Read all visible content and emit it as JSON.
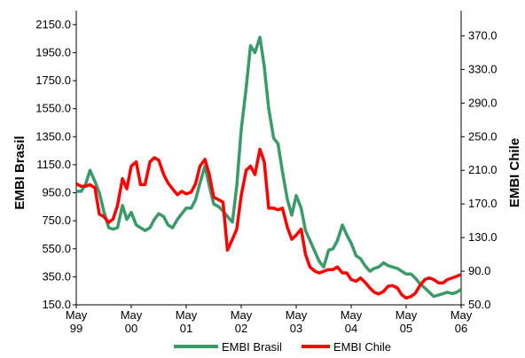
{
  "chart_data": {
    "type": "line",
    "title": "",
    "ylabel_left": "EMBI Brasil",
    "ylabel_right": "EMBI Chile",
    "ylim_left": [
      150,
      2250
    ],
    "ylim_right": [
      50,
      400
    ],
    "yticks_left": [
      "150.0",
      "350.0",
      "550.0",
      "750.0",
      "950.0",
      "1150.0",
      "1350.0",
      "1550.0",
      "1750.0",
      "1950.0",
      "2150.0"
    ],
    "yticks_right": [
      "50.0",
      "90.0",
      "130.0",
      "170.0",
      "210.0",
      "250.0",
      "290.0",
      "330.0",
      "370.0"
    ],
    "xticks": [
      {
        "line1": "May",
        "line2": "99"
      },
      {
        "line1": "May",
        "line2": "00"
      },
      {
        "line1": "May",
        "line2": "01"
      },
      {
        "line1": "May",
        "line2": "02"
      },
      {
        "line1": "May",
        "line2": "03"
      },
      {
        "line1": "May",
        "line2": "04"
      },
      {
        "line1": "May",
        "line2": "05"
      },
      {
        "line1": "May",
        "line2": "06"
      }
    ],
    "x_range": [
      1999.33,
      2006.33
    ],
    "grid": false,
    "legend_position": "bottom",
    "series": [
      {
        "name": "EMBI Brasil",
        "axis": "left",
        "color": "#3a9a6a",
        "points": [
          [
            1999.33,
            960
          ],
          [
            1999.42,
            960
          ],
          [
            1999.5,
            1010
          ],
          [
            1999.58,
            1110
          ],
          [
            1999.67,
            1030
          ],
          [
            1999.75,
            950
          ],
          [
            1999.83,
            820
          ],
          [
            1999.92,
            700
          ],
          [
            2000.0,
            690
          ],
          [
            2000.08,
            700
          ],
          [
            2000.17,
            860
          ],
          [
            2000.25,
            760
          ],
          [
            2000.33,
            810
          ],
          [
            2000.42,
            720
          ],
          [
            2000.5,
            700
          ],
          [
            2000.58,
            680
          ],
          [
            2000.67,
            700
          ],
          [
            2000.75,
            760
          ],
          [
            2000.83,
            800
          ],
          [
            2000.92,
            780
          ],
          [
            2001.0,
            720
          ],
          [
            2001.08,
            700
          ],
          [
            2001.17,
            760
          ],
          [
            2001.25,
            800
          ],
          [
            2001.33,
            840
          ],
          [
            2001.42,
            840
          ],
          [
            2001.5,
            900
          ],
          [
            2001.58,
            1020
          ],
          [
            2001.67,
            1140
          ],
          [
            2001.75,
            1000
          ],
          [
            2001.83,
            870
          ],
          [
            2001.92,
            850
          ],
          [
            2002.0,
            820
          ],
          [
            2002.08,
            780
          ],
          [
            2002.17,
            740
          ],
          [
            2002.25,
            1000
          ],
          [
            2002.33,
            1400
          ],
          [
            2002.42,
            1700
          ],
          [
            2002.5,
            2000
          ],
          [
            2002.58,
            1950
          ],
          [
            2002.67,
            2060
          ],
          [
            2002.75,
            1850
          ],
          [
            2002.83,
            1550
          ],
          [
            2002.92,
            1340
          ],
          [
            2003.0,
            1300
          ],
          [
            2003.08,
            1100
          ],
          [
            2003.17,
            900
          ],
          [
            2003.25,
            790
          ],
          [
            2003.33,
            930
          ],
          [
            2003.42,
            840
          ],
          [
            2003.5,
            680
          ],
          [
            2003.58,
            610
          ],
          [
            2003.67,
            530
          ],
          [
            2003.75,
            460
          ],
          [
            2003.83,
            420
          ],
          [
            2003.92,
            540
          ],
          [
            2004.0,
            550
          ],
          [
            2004.08,
            610
          ],
          [
            2004.17,
            720
          ],
          [
            2004.25,
            650
          ],
          [
            2004.33,
            590
          ],
          [
            2004.42,
            500
          ],
          [
            2004.5,
            480
          ],
          [
            2004.58,
            430
          ],
          [
            2004.67,
            390
          ],
          [
            2004.75,
            410
          ],
          [
            2004.83,
            420
          ],
          [
            2004.92,
            450
          ],
          [
            2005.0,
            430
          ],
          [
            2005.08,
            420
          ],
          [
            2005.17,
            410
          ],
          [
            2005.25,
            390
          ],
          [
            2005.33,
            370
          ],
          [
            2005.42,
            370
          ],
          [
            2005.5,
            340
          ],
          [
            2005.58,
            300
          ],
          [
            2005.67,
            270
          ],
          [
            2005.75,
            240
          ],
          [
            2005.83,
            210
          ],
          [
            2005.92,
            220
          ],
          [
            2006.0,
            230
          ],
          [
            2006.08,
            240
          ],
          [
            2006.17,
            230
          ],
          [
            2006.25,
            240
          ],
          [
            2006.33,
            260
          ]
        ]
      },
      {
        "name": "EMBI Chile",
        "axis": "right",
        "color": "#ff0000",
        "points": [
          [
            1999.33,
            194
          ],
          [
            1999.42,
            191
          ],
          [
            1999.5,
            191
          ],
          [
            1999.58,
            193
          ],
          [
            1999.67,
            189
          ],
          [
            1999.75,
            158
          ],
          [
            1999.83,
            155
          ],
          [
            1999.92,
            148
          ],
          [
            2000.0,
            152
          ],
          [
            2000.08,
            168
          ],
          [
            2000.17,
            200
          ],
          [
            2000.25,
            188
          ],
          [
            2000.33,
            215
          ],
          [
            2000.42,
            220
          ],
          [
            2000.5,
            193
          ],
          [
            2000.58,
            193
          ],
          [
            2000.67,
            220
          ],
          [
            2000.75,
            225
          ],
          [
            2000.83,
            222
          ],
          [
            2000.92,
            205
          ],
          [
            2001.0,
            195
          ],
          [
            2001.08,
            188
          ],
          [
            2001.17,
            181
          ],
          [
            2001.25,
            185
          ],
          [
            2001.33,
            182
          ],
          [
            2001.42,
            184
          ],
          [
            2001.5,
            194
          ],
          [
            2001.58,
            215
          ],
          [
            2001.67,
            223
          ],
          [
            2001.75,
            205
          ],
          [
            2001.83,
            178
          ],
          [
            2001.92,
            175
          ],
          [
            2002.0,
            172
          ],
          [
            2002.08,
            115
          ],
          [
            2002.17,
            128
          ],
          [
            2002.25,
            140
          ],
          [
            2002.33,
            180
          ],
          [
            2002.42,
            210
          ],
          [
            2002.5,
            215
          ],
          [
            2002.58,
            205
          ],
          [
            2002.67,
            235
          ],
          [
            2002.75,
            220
          ],
          [
            2002.83,
            165
          ],
          [
            2002.92,
            165
          ],
          [
            2003.0,
            163
          ],
          [
            2003.08,
            165
          ],
          [
            2003.17,
            142
          ],
          [
            2003.25,
            128
          ],
          [
            2003.33,
            133
          ],
          [
            2003.42,
            140
          ],
          [
            2003.5,
            110
          ],
          [
            2003.58,
            95
          ],
          [
            2003.67,
            90
          ],
          [
            2003.75,
            88
          ],
          [
            2003.83,
            90
          ],
          [
            2003.92,
            92
          ],
          [
            2004.0,
            92
          ],
          [
            2004.08,
            95
          ],
          [
            2004.17,
            88
          ],
          [
            2004.25,
            88
          ],
          [
            2004.33,
            80
          ],
          [
            2004.42,
            78
          ],
          [
            2004.5,
            82
          ],
          [
            2004.58,
            77
          ],
          [
            2004.67,
            70
          ],
          [
            2004.75,
            65
          ],
          [
            2004.83,
            63
          ],
          [
            2004.92,
            66
          ],
          [
            2005.0,
            72
          ],
          [
            2005.08,
            73
          ],
          [
            2005.17,
            70
          ],
          [
            2005.25,
            62
          ],
          [
            2005.33,
            58
          ],
          [
            2005.42,
            60
          ],
          [
            2005.5,
            64
          ],
          [
            2005.58,
            73
          ],
          [
            2005.67,
            80
          ],
          [
            2005.75,
            82
          ],
          [
            2005.83,
            80
          ],
          [
            2005.92,
            76
          ],
          [
            2006.0,
            76
          ],
          [
            2006.08,
            80
          ],
          [
            2006.17,
            82
          ],
          [
            2006.25,
            84
          ],
          [
            2006.33,
            86
          ]
        ]
      }
    ]
  }
}
